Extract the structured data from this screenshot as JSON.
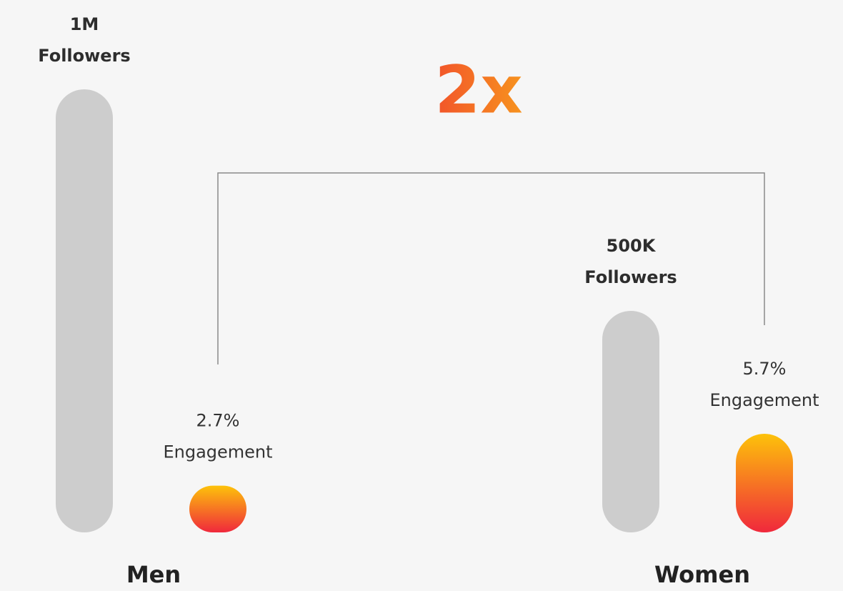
{
  "chart_data": {
    "type": "bar",
    "title": "2x",
    "categories": [
      "Men",
      "Women"
    ],
    "series": [
      {
        "name": "Followers",
        "color": "#cdcdcd",
        "values": [
          1000000,
          500000
        ],
        "value_labels": [
          "1M",
          "500K"
        ]
      },
      {
        "name": "Engagement",
        "colors": [
          "#fdc20a",
          "#f0283c"
        ],
        "values": [
          2.7,
          5.7
        ],
        "value_labels": [
          "2.7%",
          "5.7%"
        ]
      }
    ]
  }
}
